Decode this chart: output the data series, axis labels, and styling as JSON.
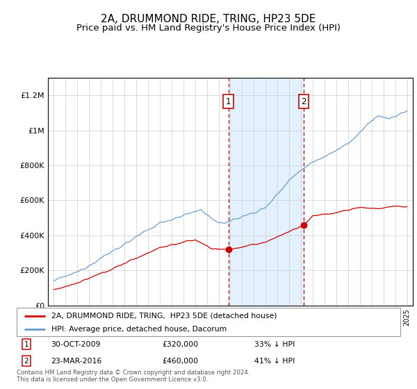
{
  "title": "2A, DRUMMOND RIDE, TRING, HP23 5DE",
  "subtitle": "Price paid vs. HM Land Registry's House Price Index (HPI)",
  "title_fontsize": 11,
  "subtitle_fontsize": 9.5,
  "ylim": [
    0,
    1300000
  ],
  "yticks": [
    0,
    200000,
    400000,
    600000,
    800000,
    1000000,
    1200000
  ],
  "ytick_labels": [
    "£0",
    "£200K",
    "£400K",
    "£600K",
    "£800K",
    "£1M",
    "£1.2M"
  ],
  "sale1_x": 2009.83,
  "sale1_y": 320000,
  "sale1_label": "30-OCT-2009",
  "sale1_price": "£320,000",
  "sale1_note": "33% ↓ HPI",
  "sale2_x": 2016.23,
  "sale2_y": 460000,
  "sale2_label": "23-MAR-2016",
  "sale2_price": "£460,000",
  "sale2_note": "41% ↓ HPI",
  "red_color": "#cc0000",
  "blue_color": "#6699cc",
  "shade_color": "#ddeeff",
  "background_color": "#ffffff",
  "grid_color": "#cccccc",
  "legend1": "2A, DRUMMOND RIDE, TRING,  HP23 5DE (detached house)",
  "legend2": "HPI: Average price, detached house, Dacorum",
  "footer": "Contains HM Land Registry data © Crown copyright and database right 2024.\nThis data is licensed under the Open Government Licence v3.0.",
  "xmin": 1994.5,
  "xmax": 2025.5
}
